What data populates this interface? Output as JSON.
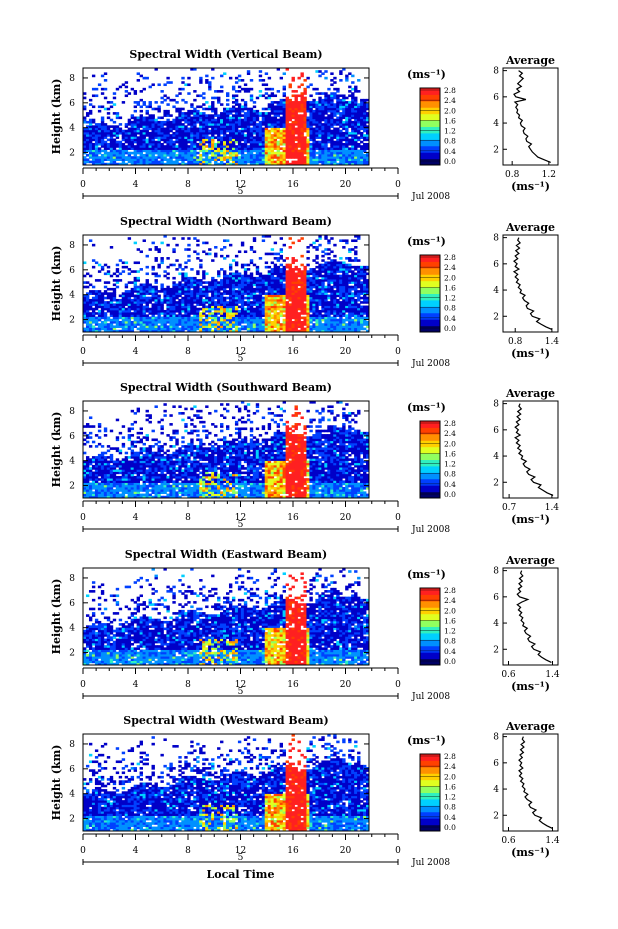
{
  "chart_data": [
    {
      "type": "heatmap",
      "title": "Spectral Width (Vertical Beam)",
      "ylabel": "Height (km)",
      "y_ticks": [
        "2",
        "4",
        "6",
        "8"
      ],
      "x_ticks": [
        "0",
        "4",
        "8",
        "12",
        "16",
        "20",
        "0"
      ],
      "date_label": "5",
      "date_right": "Jul 2008",
      "colorbar": {
        "unit": "(ms⁻¹)",
        "ticks": [
          "0.0",
          "0.4",
          "0.8",
          "1.2",
          "1.6",
          "2.0",
          "2.4",
          "2.8"
        ]
      },
      "average": {
        "title": "Average",
        "xlabel": "(ms⁻¹)",
        "xticks": [
          "0.8",
          "1.2"
        ],
        "xlim": [
          0.7,
          1.3
        ],
        "yticks": [
          "2",
          "4",
          "6",
          "8"
        ],
        "ylim": [
          0.8,
          8.2
        ],
        "profile": [
          [
            1.22,
            1.0
          ],
          [
            1.15,
            1.2
          ],
          [
            1.08,
            1.4
          ],
          [
            1.05,
            1.6
          ],
          [
            1.02,
            1.8
          ],
          [
            1.0,
            2.0
          ],
          [
            0.98,
            2.2
          ],
          [
            1.01,
            2.4
          ],
          [
            0.96,
            2.6
          ],
          [
            0.95,
            2.8
          ],
          [
            0.97,
            3.0
          ],
          [
            0.93,
            3.2
          ],
          [
            0.92,
            3.4
          ],
          [
            0.94,
            3.6
          ],
          [
            0.9,
            3.8
          ],
          [
            0.89,
            4.0
          ],
          [
            0.91,
            4.2
          ],
          [
            0.87,
            4.4
          ],
          [
            0.88,
            4.6
          ],
          [
            0.85,
            4.8
          ],
          [
            0.86,
            5.0
          ],
          [
            0.84,
            5.2
          ],
          [
            0.86,
            5.4
          ],
          [
            0.83,
            5.6
          ],
          [
            0.95,
            5.8
          ],
          [
            0.84,
            6.0
          ],
          [
            0.82,
            6.2
          ],
          [
            0.88,
            6.4
          ],
          [
            0.85,
            6.6
          ],
          [
            0.9,
            6.8
          ],
          [
            0.86,
            7.0
          ],
          [
            0.89,
            7.2
          ],
          [
            0.92,
            7.4
          ],
          [
            0.88,
            7.6
          ],
          [
            0.91,
            7.8
          ],
          [
            0.87,
            8.0
          ]
        ]
      }
    },
    {
      "type": "heatmap",
      "title": "Spectral Width (Northward Beam)",
      "ylabel": "Height (km)",
      "y_ticks": [
        "2",
        "4",
        "6",
        "8"
      ],
      "x_ticks": [
        "0",
        "4",
        "8",
        "12",
        "16",
        "20",
        "0"
      ],
      "date_label": "5",
      "date_right": "Jul 2008",
      "colorbar": {
        "unit": "(ms⁻¹)",
        "ticks": [
          "0.0",
          "0.4",
          "0.8",
          "1.2",
          "1.6",
          "2.0",
          "2.4",
          "2.8"
        ]
      },
      "average": {
        "title": "Average",
        "xlabel": "(ms⁻¹)",
        "xticks": [
          "0.8",
          "1.4"
        ],
        "xlim": [
          0.6,
          1.5
        ],
        "yticks": [
          "2",
          "4",
          "6",
          "8"
        ],
        "ylim": [
          0.8,
          8.2
        ],
        "profile": [
          [
            1.4,
            1.0
          ],
          [
            1.3,
            1.2
          ],
          [
            1.22,
            1.4
          ],
          [
            1.15,
            1.6
          ],
          [
            1.2,
            1.8
          ],
          [
            1.08,
            2.0
          ],
          [
            1.05,
            2.2
          ],
          [
            1.1,
            2.4
          ],
          [
            1.0,
            2.6
          ],
          [
            0.98,
            2.8
          ],
          [
            1.02,
            3.0
          ],
          [
            0.95,
            3.2
          ],
          [
            0.92,
            3.4
          ],
          [
            0.96,
            3.6
          ],
          [
            0.88,
            3.8
          ],
          [
            0.9,
            4.0
          ],
          [
            0.85,
            4.2
          ],
          [
            0.88,
            4.4
          ],
          [
            0.82,
            4.6
          ],
          [
            0.85,
            4.8
          ],
          [
            0.8,
            5.0
          ],
          [
            0.84,
            5.2
          ],
          [
            0.78,
            5.4
          ],
          [
            0.86,
            5.6
          ],
          [
            0.8,
            5.8
          ],
          [
            0.83,
            6.0
          ],
          [
            0.78,
            6.2
          ],
          [
            0.84,
            6.4
          ],
          [
            0.8,
            6.6
          ],
          [
            0.86,
            6.8
          ],
          [
            0.81,
            7.0
          ],
          [
            0.87,
            7.2
          ],
          [
            0.82,
            7.4
          ],
          [
            0.88,
            7.6
          ],
          [
            0.84,
            7.8
          ],
          [
            0.86,
            8.0
          ]
        ]
      }
    },
    {
      "type": "heatmap",
      "title": "Spectral Width (Southward Beam)",
      "ylabel": "Height (km)",
      "y_ticks": [
        "2",
        "4",
        "6",
        "8"
      ],
      "x_ticks": [
        "0",
        "4",
        "8",
        "12",
        "16",
        "20",
        "0"
      ],
      "date_label": "5",
      "date_right": "Jul 2008",
      "colorbar": {
        "unit": "(ms⁻¹)",
        "ticks": [
          "0.0",
          "0.4",
          "0.8",
          "1.2",
          "1.6",
          "2.0",
          "2.4",
          "2.8"
        ]
      },
      "average": {
        "title": "Average",
        "xlabel": "(ms⁻¹)",
        "xticks": [
          "0.7",
          "1.4"
        ],
        "xlim": [
          0.6,
          1.5
        ],
        "yticks": [
          "2",
          "4",
          "6",
          "8"
        ],
        "ylim": [
          0.8,
          8.2
        ],
        "profile": [
          [
            1.42,
            1.0
          ],
          [
            1.32,
            1.2
          ],
          [
            1.25,
            1.4
          ],
          [
            1.18,
            1.6
          ],
          [
            1.22,
            1.8
          ],
          [
            1.1,
            2.0
          ],
          [
            1.06,
            2.2
          ],
          [
            1.12,
            2.4
          ],
          [
            1.02,
            2.6
          ],
          [
            0.99,
            2.8
          ],
          [
            1.04,
            3.0
          ],
          [
            0.96,
            3.2
          ],
          [
            0.93,
            3.4
          ],
          [
            0.98,
            3.6
          ],
          [
            0.9,
            3.8
          ],
          [
            0.92,
            4.0
          ],
          [
            0.86,
            4.2
          ],
          [
            0.9,
            4.4
          ],
          [
            0.84,
            4.6
          ],
          [
            0.88,
            4.8
          ],
          [
            0.82,
            5.0
          ],
          [
            0.86,
            5.2
          ],
          [
            0.8,
            5.4
          ],
          [
            0.88,
            5.6
          ],
          [
            0.82,
            5.8
          ],
          [
            0.85,
            6.0
          ],
          [
            0.8,
            6.2
          ],
          [
            0.86,
            6.4
          ],
          [
            0.82,
            6.6
          ],
          [
            0.88,
            6.8
          ],
          [
            0.83,
            7.0
          ],
          [
            0.89,
            7.2
          ],
          [
            0.84,
            7.4
          ],
          [
            0.9,
            7.6
          ],
          [
            0.86,
            7.8
          ],
          [
            0.88,
            8.0
          ]
        ]
      }
    },
    {
      "type": "heatmap",
      "title": "Spectral Width (Eastward Beam)",
      "ylabel": "Height (km)",
      "y_ticks": [
        "2",
        "4",
        "6",
        "8"
      ],
      "x_ticks": [
        "0",
        "4",
        "8",
        "12",
        "16",
        "20",
        "0"
      ],
      "date_label": "5",
      "date_right": "Jul 2008",
      "colorbar": {
        "unit": "(ms⁻¹)",
        "ticks": [
          "0.0",
          "0.4",
          "0.8",
          "1.2",
          "1.6",
          "2.0",
          "2.4",
          "2.8"
        ]
      },
      "average": {
        "title": "Average",
        "xlabel": "(ms⁻¹)",
        "xticks": [
          "0.6",
          "1.4"
        ],
        "xlim": [
          0.5,
          1.5
        ],
        "yticks": [
          "2",
          "4",
          "6",
          "8"
        ],
        "ylim": [
          0.8,
          8.2
        ],
        "profile": [
          [
            1.38,
            1.0
          ],
          [
            1.28,
            1.2
          ],
          [
            1.2,
            1.4
          ],
          [
            1.14,
            1.6
          ],
          [
            1.18,
            1.8
          ],
          [
            1.06,
            2.0
          ],
          [
            1.02,
            2.2
          ],
          [
            1.08,
            2.4
          ],
          [
            0.98,
            2.6
          ],
          [
            0.95,
            2.8
          ],
          [
            1.0,
            3.0
          ],
          [
            0.92,
            3.2
          ],
          [
            0.89,
            3.4
          ],
          [
            0.94,
            3.6
          ],
          [
            0.86,
            3.8
          ],
          [
            0.88,
            4.0
          ],
          [
            0.83,
            4.2
          ],
          [
            0.86,
            4.4
          ],
          [
            0.8,
            4.6
          ],
          [
            0.84,
            4.8
          ],
          [
            0.78,
            5.0
          ],
          [
            0.82,
            5.2
          ],
          [
            0.76,
            5.4
          ],
          [
            0.84,
            5.6
          ],
          [
            0.95,
            5.8
          ],
          [
            0.8,
            6.0
          ],
          [
            0.76,
            6.2
          ],
          [
            0.82,
            6.4
          ],
          [
            0.78,
            6.6
          ],
          [
            0.84,
            6.8
          ],
          [
            0.79,
            7.0
          ],
          [
            0.85,
            7.2
          ],
          [
            0.8,
            7.4
          ],
          [
            0.86,
            7.6
          ],
          [
            0.82,
            7.8
          ],
          [
            0.84,
            8.0
          ]
        ]
      }
    },
    {
      "type": "heatmap",
      "title": "Spectral Width (Westward Beam)",
      "ylabel": "Height (km)",
      "y_ticks": [
        "2",
        "4",
        "6",
        "8"
      ],
      "x_ticks": [
        "0",
        "4",
        "8",
        "12",
        "16",
        "20",
        "0"
      ],
      "date_label": "5",
      "date_right": "Jul 2008",
      "xlabel": "Local Time",
      "colorbar": {
        "unit": "(ms⁻¹)",
        "ticks": [
          "0.0",
          "0.4",
          "0.8",
          "1.2",
          "1.6",
          "2.0",
          "2.4",
          "2.8"
        ]
      },
      "average": {
        "title": "Average",
        "xlabel": "(ms⁻¹)",
        "xticks": [
          "0.6",
          "1.4"
        ],
        "xlim": [
          0.5,
          1.5
        ],
        "yticks": [
          "2",
          "4",
          "6",
          "8"
        ],
        "ylim": [
          0.8,
          8.2
        ],
        "profile": [
          [
            1.4,
            1.0
          ],
          [
            1.3,
            1.2
          ],
          [
            1.22,
            1.4
          ],
          [
            1.16,
            1.6
          ],
          [
            1.2,
            1.8
          ],
          [
            1.08,
            2.0
          ],
          [
            1.04,
            2.2
          ],
          [
            1.1,
            2.4
          ],
          [
            1.0,
            2.6
          ],
          [
            0.97,
            2.8
          ],
          [
            1.02,
            3.0
          ],
          [
            0.94,
            3.2
          ],
          [
            0.9,
            3.4
          ],
          [
            0.95,
            3.6
          ],
          [
            0.88,
            3.8
          ],
          [
            0.9,
            4.0
          ],
          [
            0.85,
            4.2
          ],
          [
            0.88,
            4.4
          ],
          [
            0.82,
            4.6
          ],
          [
            0.86,
            4.8
          ],
          [
            0.8,
            5.0
          ],
          [
            0.84,
            5.2
          ],
          [
            0.79,
            5.4
          ],
          [
            0.86,
            5.6
          ],
          [
            0.81,
            5.8
          ],
          [
            0.84,
            6.0
          ],
          [
            0.79,
            6.2
          ],
          [
            0.85,
            6.4
          ],
          [
            0.81,
            6.6
          ],
          [
            0.87,
            6.8
          ],
          [
            0.82,
            7.0
          ],
          [
            0.88,
            7.2
          ],
          [
            0.83,
            7.4
          ],
          [
            0.89,
            7.6
          ],
          [
            0.85,
            7.8
          ],
          [
            0.87,
            8.0
          ]
        ]
      }
    }
  ],
  "colors": {
    "colormap": [
      "#000064",
      "#0000c8",
      "#0040ff",
      "#0090ff",
      "#00d0ff",
      "#30f0c0",
      "#90ff60",
      "#e0ff20",
      "#ffd000",
      "#ff9000",
      "#ff4000",
      "#ff2020"
    ]
  }
}
